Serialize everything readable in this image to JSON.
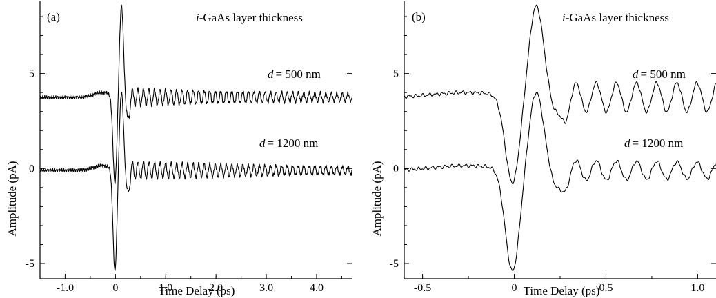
{
  "chart_data": [
    {
      "type": "line",
      "panel_label": "(a)",
      "xlabel": "Time Delay (ps)",
      "ylabel": "Amplitude (pA)",
      "xlim": [
        -1.5,
        4.7
      ],
      "ylim": [
        -5.8,
        8.8
      ],
      "xticks": [
        {
          "value": -1.0,
          "label": "-1.0"
        },
        {
          "value": 0,
          "label": "0"
        },
        {
          "value": 1.0,
          "label": "1.0"
        },
        {
          "value": 2.0,
          "label": "2.0"
        },
        {
          "value": 3.0,
          "label": "3.0"
        },
        {
          "value": 4.0,
          "label": "4.0"
        }
      ],
      "yticks": [
        {
          "value": -5,
          "label": "-5"
        },
        {
          "value": 0,
          "label": "0"
        },
        {
          "value": 5,
          "label": "5"
        }
      ],
      "annotations": {
        "heading_italic": "i",
        "heading_rest": "-GaAs layer thickness",
        "d_symbol": "d",
        "label_500": "= 500 nm",
        "label_1200": "= 1200 nm"
      },
      "series": [
        {
          "name": "d = 500 nm",
          "baseline": 3.75,
          "pulse": {
            "t0": 0.05,
            "dip": -4.6,
            "peak": 4.8,
            "dip_center": -0.01,
            "peak_center": 0.12,
            "width": 0.055
          },
          "ringing": {
            "start": 0.2,
            "amplitude": 0.45,
            "frequency_THz": 9.1,
            "decay_per_ps": 0.18
          }
        },
        {
          "name": "d = 1200 nm",
          "baseline": -0.1,
          "pulse": {
            "t0": 0.05,
            "dip": -5.4,
            "peak": 4.1,
            "dip_center": -0.01,
            "peak_center": 0.12,
            "width": 0.055
          },
          "ringing": {
            "start": 0.2,
            "amplitude": 0.45,
            "frequency_THz": 9.1,
            "decay_per_ps": 0.18
          }
        }
      ]
    },
    {
      "type": "line",
      "panel_label": "(b)",
      "xlabel": "Time Delay (ps)",
      "ylabel": "Amplitude (pA)",
      "xlim": [
        -0.6,
        1.1
      ],
      "ylim": [
        -5.8,
        8.8
      ],
      "xticks": [
        {
          "value": -0.5,
          "label": "-0.5"
        },
        {
          "value": 0,
          "label": "0"
        },
        {
          "value": 0.5,
          "label": "0.5"
        },
        {
          "value": 1.0,
          "label": "1.0"
        }
      ],
      "yticks": [
        {
          "value": -5,
          "label": "-5"
        },
        {
          "value": 0,
          "label": "0"
        },
        {
          "value": 5,
          "label": "5"
        }
      ],
      "annotations": {
        "heading_italic": "i",
        "heading_rest": "-GaAs layer thickness",
        "d_symbol": "d",
        "label_500": "= 500 nm",
        "label_1200": "= 1200 nm"
      },
      "series": [
        {
          "name": "d = 500 nm",
          "baseline": 3.75,
          "pulse": {
            "t0": 0.05,
            "dip": -4.6,
            "peak": 4.8,
            "dip_center": -0.01,
            "peak_center": 0.12,
            "width": 0.055
          },
          "ringing": {
            "start": 0.2,
            "amplitude": 0.75,
            "frequency_THz": 9.1,
            "decay_per_ps": 0.0
          }
        },
        {
          "name": "d = 1200 nm",
          "baseline": -0.1,
          "pulse": {
            "t0": 0.05,
            "dip": -5.4,
            "peak": 4.1,
            "dip_center": -0.01,
            "peak_center": 0.12,
            "width": 0.055
          },
          "ringing": {
            "start": 0.2,
            "amplitude": 0.55,
            "frequency_THz": 9.1,
            "decay_per_ps": 0.3
          }
        }
      ]
    }
  ]
}
